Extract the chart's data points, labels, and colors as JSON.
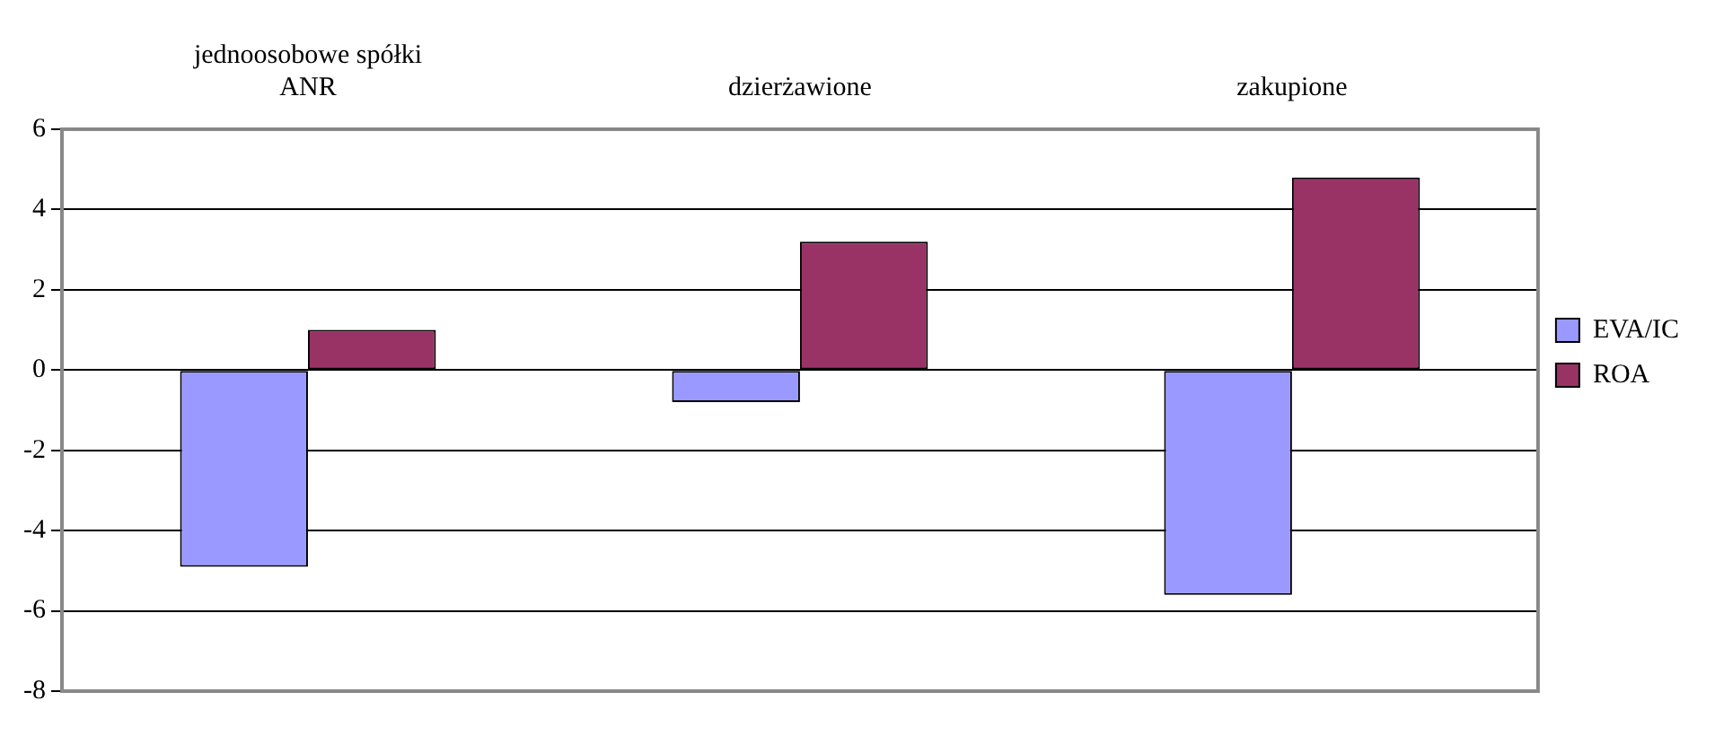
{
  "chart_data": {
    "type": "bar",
    "categories": [
      "jednoosobowe spółki ANR",
      "dzierżawione",
      "zakupione"
    ],
    "series": [
      {
        "name": "EVA/IC",
        "color": "#9999ff",
        "values": [
          -4.9,
          -0.8,
          -5.6
        ]
      },
      {
        "name": "ROA",
        "color": "#993366",
        "values": [
          1.0,
          3.2,
          4.8
        ]
      }
    ],
    "ylim": [
      -8,
      6
    ],
    "yticks": [
      -8,
      -6,
      -4,
      -2,
      0,
      2,
      4,
      6
    ],
    "grid": "y",
    "legend": "right"
  }
}
